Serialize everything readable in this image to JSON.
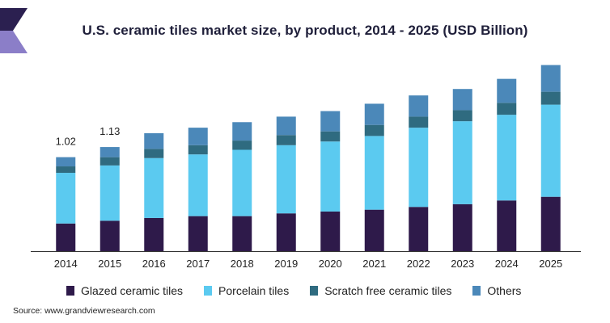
{
  "title": "U.S. ceramic tiles market size, by product, 2014 - 2025 (USD Billion)",
  "source": "Source: www.grandviewresearch.com",
  "colors": {
    "glazed": "#2e1a4a",
    "porcelain": "#5bcaf0",
    "scratch": "#2f6b80",
    "others": "#4b88b9",
    "logo_dark": "#2b2050",
    "logo_light": "#8b7ec8"
  },
  "chart_data": {
    "type": "bar",
    "stacked": true,
    "categories": [
      "2014",
      "2015",
      "2016",
      "2017",
      "2018",
      "2019",
      "2020",
      "2021",
      "2022",
      "2023",
      "2024",
      "2025"
    ],
    "series": [
      {
        "name": "Glazed ceramic tiles",
        "values": [
          0.3,
          0.33,
          0.36,
          0.38,
          0.38,
          0.41,
          0.43,
          0.45,
          0.48,
          0.51,
          0.55,
          0.59
        ]
      },
      {
        "name": "Porcelain tiles",
        "values": [
          0.55,
          0.6,
          0.65,
          0.67,
          0.72,
          0.74,
          0.76,
          0.8,
          0.86,
          0.9,
          0.93,
          1.0
        ]
      },
      {
        "name": "Scratch free ceramic tiles",
        "values": [
          0.07,
          0.09,
          0.1,
          0.1,
          0.1,
          0.11,
          0.11,
          0.12,
          0.12,
          0.12,
          0.13,
          0.14
        ]
      },
      {
        "name": "Others",
        "values": [
          0.1,
          0.11,
          0.17,
          0.19,
          0.2,
          0.2,
          0.22,
          0.23,
          0.23,
          0.23,
          0.26,
          0.29
        ]
      }
    ],
    "data_labels": [
      {
        "category": "2014",
        "text": "1.02"
      },
      {
        "category": "2015",
        "text": "1.13"
      }
    ],
    "ylim": [
      0,
      2.2
    ],
    "grid": false,
    "legend_position": "bottom"
  }
}
